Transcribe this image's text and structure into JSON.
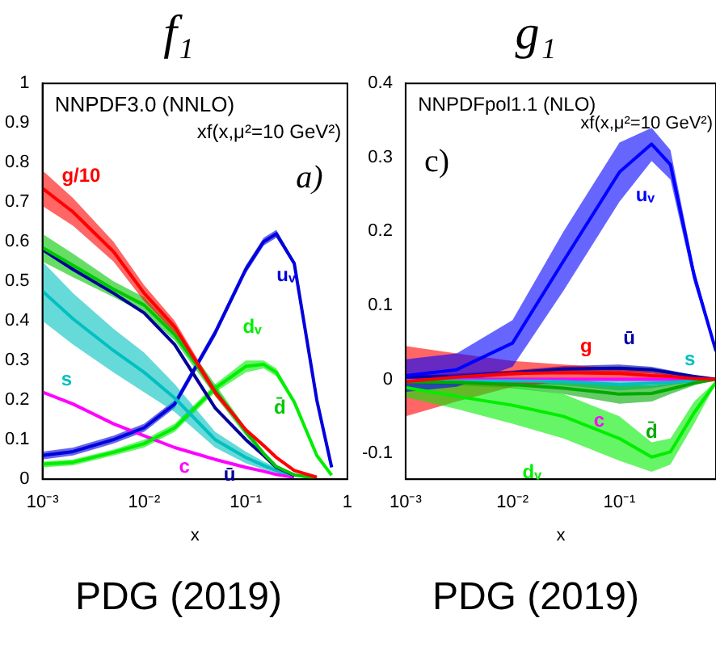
{
  "chart_data": [
    {
      "type": "line",
      "title": "f₁",
      "xlabel": "x",
      "annotations": [
        "NNPDF3.0 (NNLO)",
        "xf(x,μ²=10 GeV²)",
        "a)",
        "PDG (2019)"
      ],
      "log": "x",
      "xlim": [
        0.001,
        1
      ],
      "xticks": [
        {
          "value": 0.001,
          "label": "10⁻³"
        },
        {
          "value": 0.01,
          "label": "10⁻²"
        },
        {
          "value": 0.1,
          "label": "10⁻¹"
        },
        1
      ],
      "ylim": [
        0,
        1
      ],
      "yticks": [
        0,
        0.1,
        0.2,
        0.3,
        0.4,
        0.5,
        0.6,
        0.7,
        0.8,
        0.9,
        1
      ],
      "x": [
        0.001,
        0.002,
        0.005,
        0.01,
        0.02,
        0.05,
        0.1,
        0.15,
        0.2,
        0.3,
        0.5,
        0.7
      ],
      "series": [
        {
          "name": "g/10",
          "color": "#ff0000",
          "values": [
            0.735,
            0.675,
            0.575,
            0.47,
            0.385,
            0.22,
            0.125,
            0.085,
            0.055,
            0.022,
            0.005,
            null
          ],
          "lower": [
            0.69,
            0.64,
            0.55,
            0.45,
            0.37,
            0.21,
            0.12,
            0.08,
            0.05,
            0.02,
            0.004,
            null
          ],
          "upper": [
            0.78,
            0.71,
            0.6,
            0.49,
            0.4,
            0.23,
            0.13,
            0.09,
            0.06,
            0.025,
            0.006,
            null
          ]
        },
        {
          "name": "d̄",
          "color": "#00c800",
          "values": [
            0.585,
            0.54,
            0.48,
            0.44,
            0.365,
            0.225,
            0.12,
            0.065,
            0.032,
            0.011,
            0.002,
            null
          ],
          "lower": [
            0.55,
            0.51,
            0.46,
            0.42,
            0.35,
            0.21,
            0.11,
            0.06,
            0.03,
            0.01,
            0.002,
            null
          ],
          "upper": [
            0.62,
            0.57,
            0.5,
            0.46,
            0.38,
            0.24,
            0.13,
            0.07,
            0.035,
            0.012,
            0.003,
            null
          ]
        },
        {
          "name": "ū",
          "color": "#000099",
          "values": [
            0.58,
            0.53,
            0.47,
            0.42,
            0.34,
            0.18,
            0.1,
            0.06,
            0.03,
            0.01,
            null,
            null
          ]
        },
        {
          "name": "s",
          "color": "#00c0c0",
          "values": [
            0.475,
            0.405,
            0.325,
            0.27,
            0.205,
            0.1,
            0.055,
            0.035,
            0.022,
            0.01,
            null,
            null
          ],
          "lower": [
            0.4,
            0.34,
            0.27,
            0.22,
            0.17,
            0.08,
            0.04,
            0.025,
            0.015,
            0.007,
            0.001,
            null
          ],
          "upper": [
            0.55,
            0.47,
            0.38,
            0.32,
            0.24,
            0.12,
            0.07,
            0.045,
            0.03,
            0.012,
            0.002,
            null
          ]
        },
        {
          "name": "uᵥ",
          "color": "#0000dd",
          "values": [
            0.06,
            0.07,
            0.1,
            0.13,
            0.19,
            0.37,
            0.53,
            0.6,
            0.62,
            0.545,
            0.2,
            0.03
          ],
          "lower": [
            0.05,
            0.06,
            0.09,
            0.12,
            0.18,
            0.36,
            0.52,
            0.59,
            0.61,
            0.54,
            0.2,
            0.03
          ],
          "upper": [
            0.07,
            0.08,
            0.11,
            0.14,
            0.2,
            0.38,
            0.54,
            0.61,
            0.63,
            0.55,
            0.2,
            0.03
          ]
        },
        {
          "name": "dᵥ",
          "color": "#00ee00",
          "values": [
            0.038,
            0.043,
            0.068,
            0.09,
            0.13,
            0.23,
            0.285,
            0.29,
            0.27,
            0.195,
            0.06,
            0.01
          ],
          "lower": [
            0.03,
            0.035,
            0.06,
            0.08,
            0.12,
            0.22,
            0.27,
            0.28,
            0.26,
            0.19,
            0.06,
            0.01
          ],
          "upper": [
            0.045,
            0.05,
            0.075,
            0.1,
            0.14,
            0.24,
            0.3,
            0.3,
            0.28,
            0.2,
            0.06,
            0.01
          ]
        },
        {
          "name": "c",
          "color": "#ff00ff",
          "values": [
            0.22,
            0.19,
            0.14,
            0.11,
            0.08,
            0.05,
            0.03,
            0.02,
            0.012,
            0.005,
            null,
            null
          ]
        }
      ]
    },
    {
      "type": "line",
      "title": "g₁",
      "xlabel": "x",
      "annotations": [
        "NNPDFpol1.1 (NLO)",
        "xf(x,μ²=10 GeV²)",
        "c)",
        "PDG (2019)"
      ],
      "log": "x",
      "xlim": [
        0.001,
        0.8
      ],
      "xticks": [
        {
          "value": 0.001,
          "label": "10⁻³"
        },
        {
          "value": 0.01,
          "label": "10⁻²"
        },
        {
          "value": 0.1,
          "label": "10⁻¹"
        }
      ],
      "ylim": [
        -0.135,
        0.4
      ],
      "yticks": [
        -0.1,
        0,
        0.1,
        0.2,
        0.3,
        0.4
      ],
      "x": [
        0.001,
        0.003,
        0.01,
        0.03,
        0.1,
        0.2,
        0.3,
        0.5,
        0.8
      ],
      "series": [
        {
          "name": "uᵥ",
          "color": "#0000ff",
          "values": [
            0.005,
            0.013,
            0.049,
            0.16,
            0.28,
            0.318,
            0.29,
            0.14,
            0.038
          ],
          "lower": [
            -0.017,
            -0.01,
            0.017,
            0.12,
            0.24,
            0.295,
            0.27,
            0.13,
            0.035
          ],
          "upper": [
            0.027,
            0.035,
            0.08,
            0.2,
            0.32,
            0.34,
            0.31,
            0.15,
            0.04
          ]
        },
        {
          "name": "dᵥ",
          "color": "#00ee00",
          "values": [
            -0.011,
            -0.023,
            -0.035,
            -0.05,
            -0.08,
            -0.105,
            -0.098,
            -0.045,
            -0.004
          ],
          "lower": [
            -0.024,
            -0.04,
            -0.06,
            -0.08,
            -0.11,
            -0.125,
            -0.115,
            -0.06,
            -0.005
          ],
          "upper": [
            0.003,
            -0.005,
            -0.01,
            -0.02,
            -0.05,
            -0.085,
            -0.08,
            -0.03,
            -0.002
          ]
        },
        {
          "name": "g",
          "color": "#ff0000",
          "values": [
            -0.003,
            0.003,
            0.008,
            0.009,
            0.008,
            0.005,
            0.004,
            0.001,
            0
          ],
          "lower": [
            -0.05,
            -0.03,
            -0.01,
            -0.003,
            0,
            0,
            0,
            0,
            0
          ],
          "upper": [
            0.045,
            0.035,
            0.025,
            0.02,
            0.015,
            0.01,
            0.007,
            0.002,
            0
          ]
        },
        {
          "name": "d̄",
          "color": "#00aa00",
          "values": [
            -0.003,
            -0.004,
            -0.007,
            -0.012,
            -0.02,
            -0.019,
            -0.013,
            -0.005,
            0
          ],
          "lower": [
            -0.005,
            -0.008,
            -0.012,
            -0.02,
            -0.033,
            -0.03,
            -0.02,
            -0.008,
            0
          ],
          "upper": [
            0,
            0,
            -0.002,
            -0.004,
            -0.008,
            -0.008,
            -0.006,
            -0.002,
            0
          ]
        },
        {
          "name": "ū",
          "color": "#0000aa",
          "values": [
            0.003,
            0.004,
            0.009,
            0.014,
            0.015,
            0.013,
            0.009,
            0.004,
            0
          ],
          "lower": [
            0,
            0,
            0.005,
            0.01,
            0.01,
            0.008,
            0.005,
            0.002,
            0
          ],
          "upper": [
            0.005,
            0.008,
            0.012,
            0.018,
            0.02,
            0.017,
            0.012,
            0.005,
            0
          ]
        },
        {
          "name": "s",
          "color": "#00c0c0",
          "values": [
            -0.002,
            -0.002,
            -0.002,
            -0.003,
            -0.007,
            -0.005,
            -0.004,
            -0.002,
            0
          ],
          "lower": [
            -0.005,
            -0.005,
            -0.006,
            -0.008,
            -0.015,
            -0.012,
            -0.008,
            -0.003,
            0
          ],
          "upper": [
            0.002,
            0.002,
            0.002,
            0.002,
            0.002,
            0.002,
            0.001,
            0,
            0
          ]
        },
        {
          "name": "c",
          "color": "#ff00ff",
          "values": [
            0,
            0,
            0,
            0,
            0,
            0,
            0,
            0,
            0
          ]
        }
      ]
    }
  ]
}
